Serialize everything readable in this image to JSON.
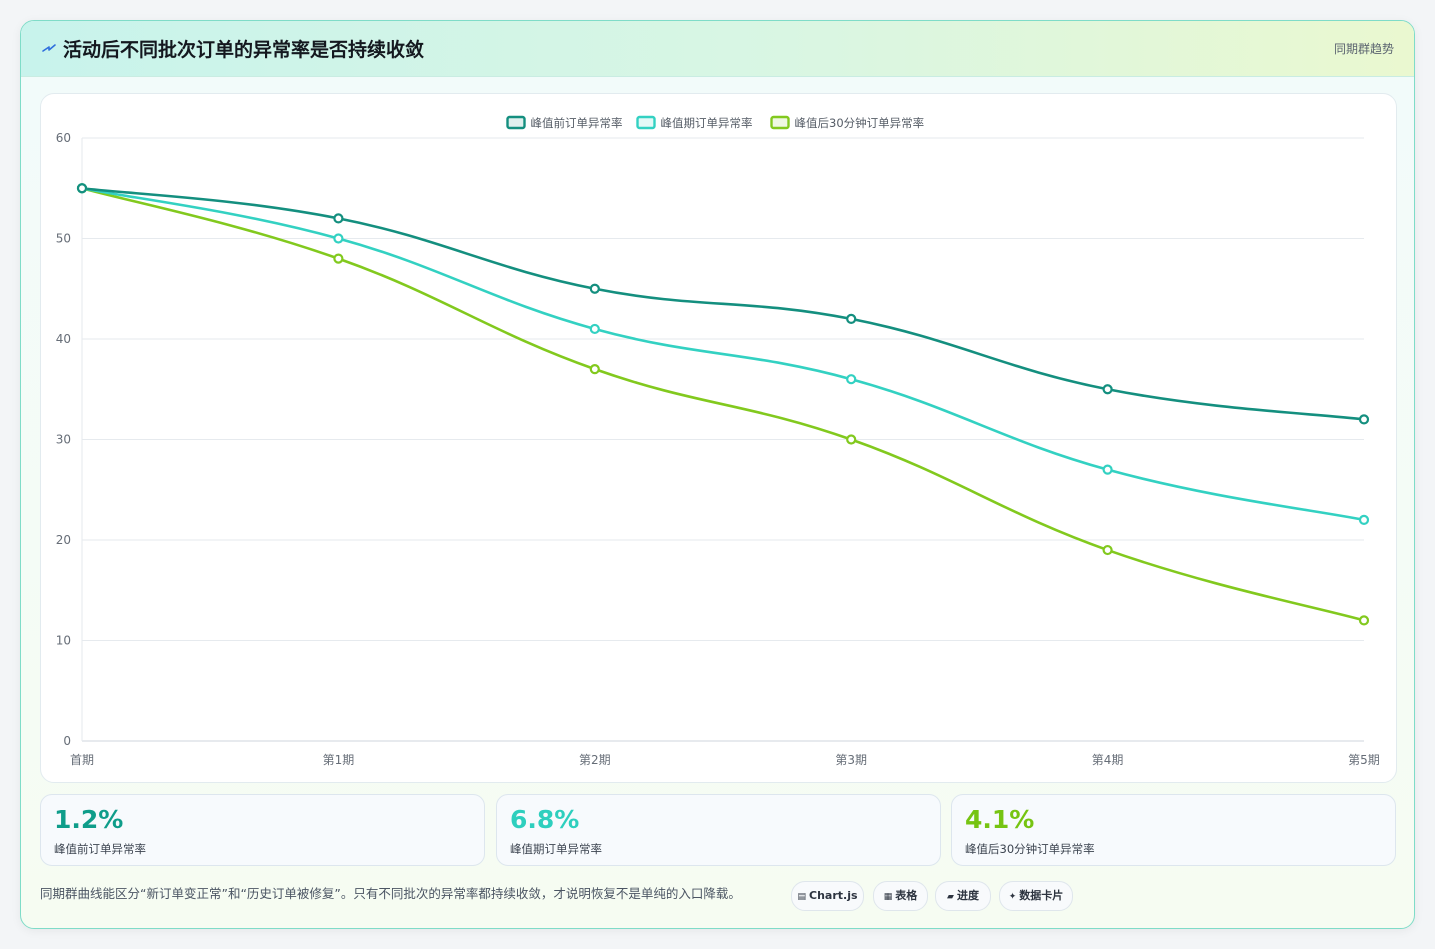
{
  "header": {
    "icon": "lightning-icon",
    "title": "活动后不同批次订单的异常率是否持续收敛",
    "tag": "同期群趋势"
  },
  "chart_data": {
    "type": "line",
    "categories": [
      "首期",
      "第1期",
      "第2期",
      "第3期",
      "第4期",
      "第5期"
    ],
    "series": [
      {
        "name": "峰值前订单异常率",
        "color": "#148f7f",
        "values": [
          55,
          52,
          45,
          42,
          35,
          32
        ]
      },
      {
        "name": "峰值期订单异常率",
        "color": "#33d1c2",
        "values": [
          55,
          50,
          41,
          36,
          27,
          22
        ]
      },
      {
        "name": "峰值后30分钟订单异常率",
        "color": "#82c91e",
        "values": [
          55,
          48,
          37,
          30,
          19,
          12
        ]
      }
    ],
    "ylim": [
      0,
      60
    ],
    "yticks": [
      0,
      10,
      20,
      30,
      40,
      50,
      60
    ],
    "grid": true,
    "legend": "top-center",
    "smooth": true
  },
  "stats": [
    {
      "value": "1.2%",
      "label": "峰值前订单异常率",
      "color": "#0f9d8a"
    },
    {
      "value": "6.8%",
      "label": "峰值期订单异常率",
      "color": "#2ecfbe"
    },
    {
      "value": "4.1%",
      "label": "峰值后30分钟订单异常率",
      "color": "#76c412"
    }
  ],
  "note": "同期群曲线能区分“新订单变正常”和“历史订单被修复”。只有不同批次的异常率都持续收敛，才说明恢复不是单纯的入口降载。",
  "pills": [
    {
      "icon": "chart-icon",
      "glyph": "▤",
      "label": "Chart.js"
    },
    {
      "icon": "table-icon",
      "glyph": "▦",
      "label": "表格"
    },
    {
      "icon": "progress-icon",
      "glyph": "▰",
      "label": "进度"
    },
    {
      "icon": "sparkle-icon",
      "glyph": "✦",
      "label": "数据卡片"
    }
  ]
}
